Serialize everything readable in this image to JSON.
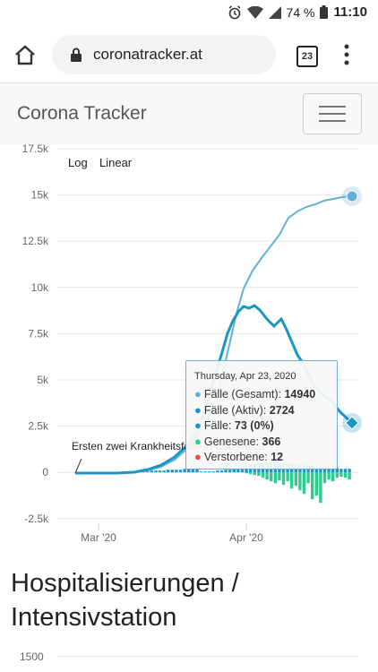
{
  "statusbar": {
    "battery": "74 %",
    "time": "11:10"
  },
  "browser": {
    "url": "coronatracker.at",
    "tab_count": "23"
  },
  "navbar": {
    "brand": "Corona Tracker"
  },
  "chart_data": {
    "type": "line",
    "scale_buttons": [
      "Log",
      "Linear"
    ],
    "yticks": [
      "17.5k",
      "15k",
      "12.5k",
      "10k",
      "7.5k",
      "5k",
      "2.5k",
      "0",
      "-2.5k"
    ],
    "xticks": [
      "Mar '20",
      "Apr '20"
    ],
    "ylim": [
      -2500,
      17500
    ],
    "annotation": "Ersten zwei Krankheitsfälle in Österreich",
    "series": [
      {
        "name": "Fälle (Gesamt)",
        "color": "#62b0d8"
      },
      {
        "name": "Fälle (Aktiv)",
        "color": "#1b95c4"
      }
    ],
    "bars_new_cases": {
      "color": "#1b95c4"
    },
    "bars_recovered": {
      "color": "#2ecc8e"
    },
    "tooltip": {
      "date": "Thursday, Apr 23, 2020",
      "rows": [
        {
          "label": "Fälle (Gesamt): ",
          "value": "14940",
          "color": "#62b0d8"
        },
        {
          "label": "Fälle (Aktiv): ",
          "value": "2724",
          "color": "#1b95c4"
        },
        {
          "label": "Fälle: ",
          "value": "73 (0%)",
          "color": "#1b95c4"
        },
        {
          "label": "Genesene: ",
          "value": "366",
          "color": "#2ecc8e"
        },
        {
          "label": "Verstorbene: ",
          "value": "12",
          "color": "#e74c3c"
        }
      ]
    }
  },
  "section2": {
    "title": "Hospitalisierungen / Intensivstation",
    "first_tick": "1500"
  }
}
